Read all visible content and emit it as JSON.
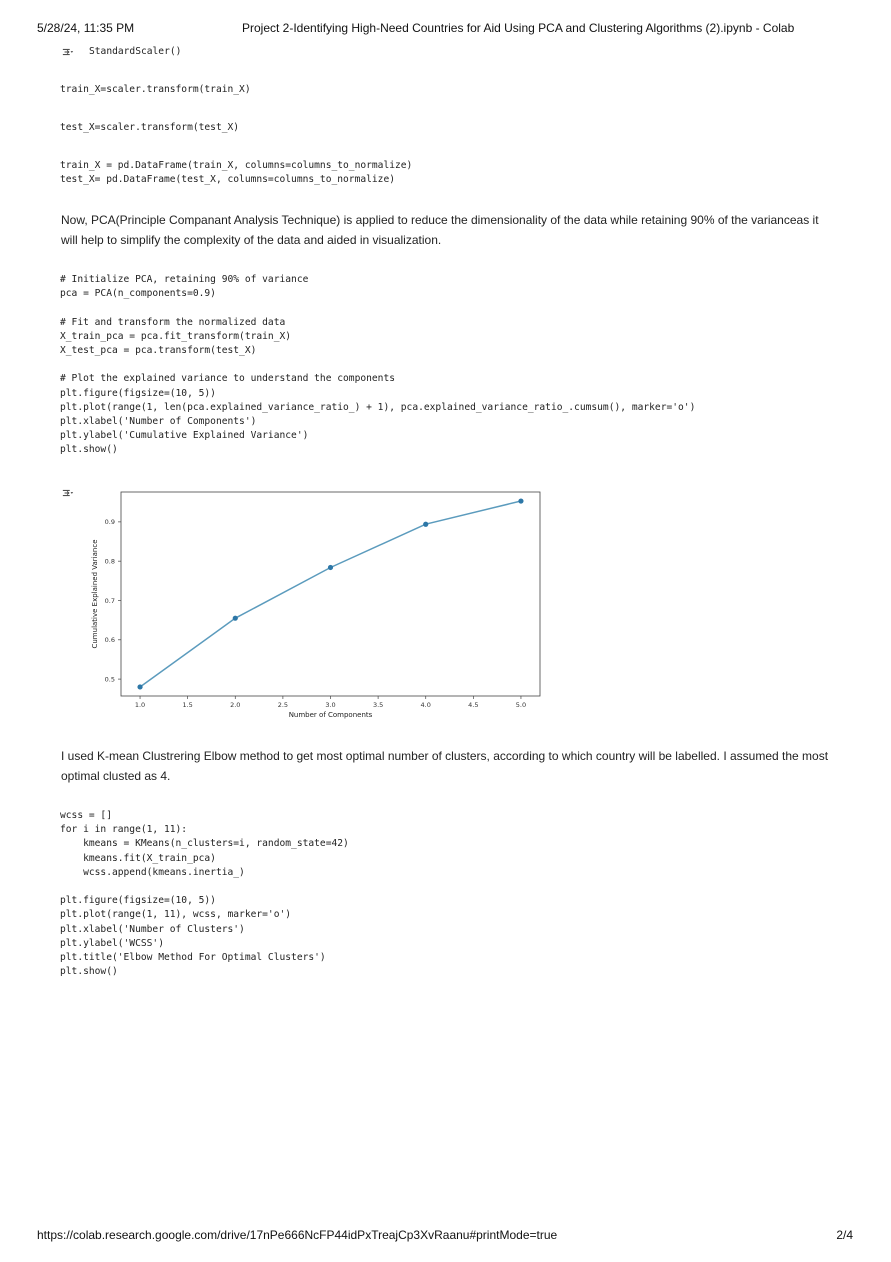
{
  "header": {
    "timestamp": "5/28/24, 11:35 PM",
    "title": "Project 2-Identifying High-Need Countries for Aid Using PCA and Clustering Algorithms (2).ipynb - Colab"
  },
  "footer": {
    "url": "https://colab.research.google.com/drive/17nPe666NcFP44idPxTreajCp3XvRaanu#printMode=true",
    "page": "2/4"
  },
  "cells": {
    "output1": "StandardScaler()",
    "code1": "train_X=scaler.transform(train_X)",
    "code2": "test_X=scaler.transform(test_X)",
    "code3": "train_X = pd.DataFrame(train_X, columns=columns_to_normalize)\ntest_X= pd.DataFrame(test_X, columns=columns_to_normalize)",
    "text1": "Now, PCA(Principle Companant Analysis Technique) is applied to reduce the dimensionality of the data while retaining 90% of the varianceas it will help to simplify the complexity of the data and aided in visualization.",
    "code4": "# Initialize PCA, retaining 90% of variance\npca = PCA(n_components=0.9)\n\n# Fit and transform the normalized data\nX_train_pca = pca.fit_transform(train_X)\nX_test_pca = pca.transform(test_X)\n\n# Plot the explained variance to understand the components\nplt.figure(figsize=(10, 5))\nplt.plot(range(1, len(pca.explained_variance_ratio_) + 1), pca.explained_variance_ratio_.cumsum(), marker='o')\nplt.xlabel('Number of Components')\nplt.ylabel('Cumulative Explained Variance')\nplt.show()",
    "text2": "I used K-mean Clustrering Elbow method to get most optimal number of clusters, according to which country will be labelled. I assumed the most optimal clusted as 4.",
    "code5": "wcss = []\nfor i in range(1, 11):\n    kmeans = KMeans(n_clusters=i, random_state=42)\n    kmeans.fit(X_train_pca)\n    wcss.append(kmeans.inertia_)\n\nplt.figure(figsize=(10, 5))\nplt.plot(range(1, 11), wcss, marker='o')\nplt.xlabel('Number of Clusters')\nplt.ylabel('WCSS')\nplt.title('Elbow Method For Optimal Clusters')\nplt.show()"
  },
  "icons": {
    "output_toggle": "output-toggle-icon"
  },
  "colors": {
    "line": "#5b9bbd",
    "marker": "#2d77a7"
  },
  "chart_data": {
    "type": "line",
    "title": "",
    "xlabel": "Number of Components",
    "ylabel": "Cumulative Explained Variance",
    "x": [
      1,
      2,
      3,
      4,
      5
    ],
    "series": [
      {
        "values": [
          0.48,
          0.655,
          0.784,
          0.894,
          0.953
        ]
      }
    ],
    "xlim": [
      0.8,
      5.2
    ],
    "ylim": [
      0.457,
      0.976
    ],
    "xticks": [
      1.0,
      1.5,
      2.0,
      2.5,
      3.0,
      3.5,
      4.0,
      4.5,
      5.0
    ],
    "xtick_labels": [
      "1.0",
      "1.5",
      "2.0",
      "2.5",
      "3.0",
      "3.5",
      "4.0",
      "4.5",
      "5.0"
    ],
    "yticks": [
      0.5,
      0.6,
      0.7,
      0.8,
      0.9
    ],
    "ytick_labels": [
      "0.5",
      "0.6",
      "0.7",
      "0.8",
      "0.9"
    ],
    "grid": false,
    "marker": "o"
  }
}
